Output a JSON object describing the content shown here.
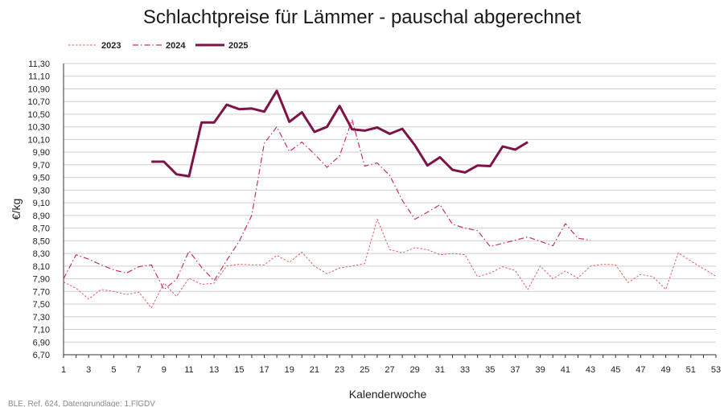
{
  "chart_data": {
    "type": "line",
    "title": "Schlachtpreise für Lämmer - pauschal abgerechnet",
    "xlabel": "Kalenderwoche",
    "ylabel": "€/kg",
    "xlim": [
      1,
      53
    ],
    "ylim": [
      6.7,
      11.3
    ],
    "yticks": [
      "6,70",
      "6,90",
      "7,10",
      "7,30",
      "7,50",
      "7,70",
      "7,90",
      "8,10",
      "8,30",
      "8,50",
      "8,70",
      "8,90",
      "9,10",
      "9,30",
      "9,50",
      "9,70",
      "9,90",
      "10,10",
      "10,30",
      "10,50",
      "10,70",
      "10,90",
      "11,10",
      "11,30"
    ],
    "xticks": [
      "1",
      "3",
      "5",
      "7",
      "9",
      "11",
      "13",
      "15",
      "17",
      "19",
      "21",
      "23",
      "25",
      "27",
      "29",
      "31",
      "33",
      "35",
      "37",
      "39",
      "41",
      "43",
      "45",
      "47",
      "49",
      "51",
      "53"
    ],
    "grid": true,
    "legend_position": "top-left",
    "source": "BLE, Ref. 624, Datengrundlage: 1.FlGDV",
    "series": [
      {
        "name": "2023",
        "style": "dotted",
        "color": "#e06060",
        "x": [
          1,
          2,
          3,
          4,
          5,
          6,
          7,
          8,
          9,
          10,
          11,
          12,
          13,
          14,
          15,
          16,
          17,
          18,
          19,
          20,
          21,
          22,
          23,
          24,
          25,
          26,
          27,
          28,
          29,
          30,
          31,
          32,
          33,
          34,
          35,
          36,
          37,
          38,
          39,
          40,
          41,
          42,
          43,
          44,
          45,
          46,
          47,
          48,
          49,
          50,
          51,
          52,
          53
        ],
        "values": [
          7.85,
          7.75,
          7.58,
          7.73,
          7.7,
          7.65,
          7.69,
          7.44,
          7.83,
          7.62,
          7.91,
          7.81,
          7.83,
          8.1,
          8.13,
          8.12,
          8.12,
          8.27,
          8.16,
          8.32,
          8.1,
          7.98,
          8.07,
          8.1,
          8.14,
          8.84,
          8.36,
          8.31,
          8.39,
          8.36,
          8.28,
          8.3,
          8.28,
          7.93,
          7.99,
          8.09,
          8.03,
          7.73,
          8.1,
          7.9,
          8.02,
          7.91,
          8.1,
          8.13,
          8.12,
          7.84,
          7.97,
          7.93,
          7.73,
          8.31,
          8.18,
          8.06,
          7.94
        ]
      },
      {
        "name": "2024",
        "style": "dashdot",
        "color": "#c8325e",
        "x": [
          1,
          2,
          3,
          4,
          5,
          6,
          7,
          8,
          9,
          10,
          11,
          12,
          13,
          14,
          15,
          16,
          17,
          18,
          19,
          20,
          21,
          22,
          23,
          24,
          25,
          26,
          27,
          28,
          29,
          30,
          31,
          32,
          33,
          34,
          35,
          36,
          37,
          38,
          39,
          40,
          41,
          42,
          43
        ],
        "values": [
          7.9,
          8.28,
          8.21,
          8.12,
          8.04,
          7.99,
          8.09,
          8.12,
          7.73,
          7.89,
          8.34,
          8.08,
          7.87,
          8.19,
          8.49,
          8.9,
          10.04,
          10.3,
          9.91,
          10.06,
          9.87,
          9.66,
          9.84,
          10.41,
          9.68,
          9.73,
          9.53,
          9.14,
          8.84,
          8.95,
          9.07,
          8.76,
          8.7,
          8.66,
          8.41,
          8.46,
          8.51,
          8.56,
          8.49,
          8.42,
          8.77,
          8.54,
          8.51
        ]
      },
      {
        "name": "2025",
        "style": "solid",
        "color": "#7d1346",
        "x": [
          8,
          9,
          10,
          11,
          12,
          13,
          14,
          15,
          16,
          17,
          18,
          19,
          20,
          21,
          22,
          23,
          24,
          25,
          26,
          27,
          28,
          29,
          30,
          31,
          32,
          33,
          34,
          35,
          36,
          37,
          38
        ],
        "values": [
          9.75,
          9.75,
          9.55,
          9.52,
          10.37,
          10.37,
          10.65,
          10.58,
          10.59,
          10.54,
          10.87,
          10.38,
          10.53,
          10.22,
          10.3,
          10.63,
          10.26,
          10.24,
          10.29,
          10.19,
          10.27,
          10.01,
          9.69,
          9.82,
          9.62,
          9.58,
          9.69,
          9.68,
          9.99,
          9.94,
          10.06
        ]
      }
    ]
  }
}
